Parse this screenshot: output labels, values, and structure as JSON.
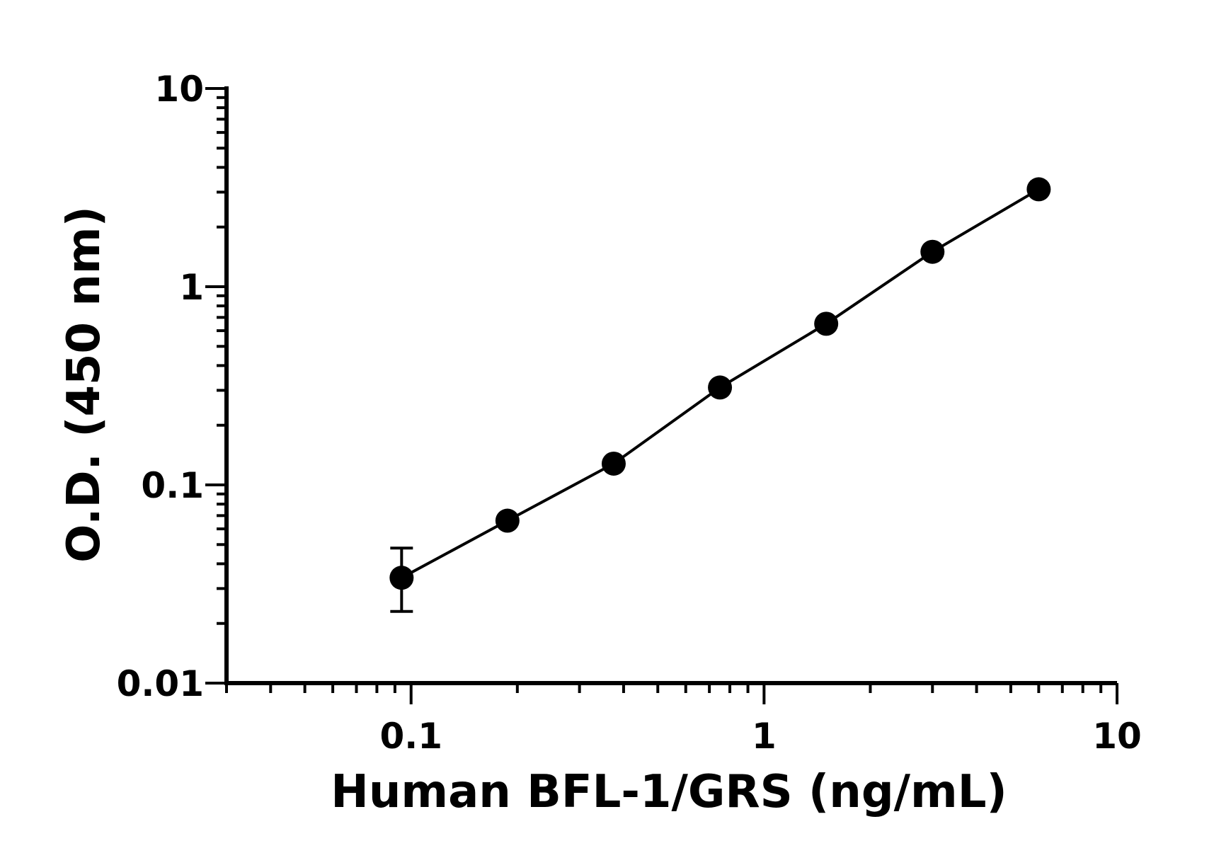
{
  "chart_data": {
    "type": "scatter",
    "xlabel": "Human BFL-1/GRS (ng/mL)",
    "ylabel": "O.D. (450 nm)",
    "x_scale": "log",
    "y_scale": "log",
    "xlim": [
      0.03,
      10
    ],
    "ylim": [
      0.01,
      10
    ],
    "x_tick_labels": [
      "0.1",
      "1",
      "10"
    ],
    "y_tick_labels": [
      "0.01",
      "0.1",
      "1",
      "10"
    ],
    "grid": false,
    "legend": "none",
    "series": [
      {
        "x": [
          0.094,
          0.1875,
          0.375,
          0.75,
          1.5,
          3,
          6
        ],
        "y": [
          0.034,
          0.066,
          0.128,
          0.31,
          0.65,
          1.5,
          3.1
        ],
        "y_err_low": [
          0.023,
          null,
          null,
          null,
          null,
          null,
          null
        ],
        "y_err_high": [
          0.048,
          null,
          null,
          null,
          null,
          null,
          null
        ],
        "connected": true,
        "color": "#000000"
      }
    ]
  }
}
